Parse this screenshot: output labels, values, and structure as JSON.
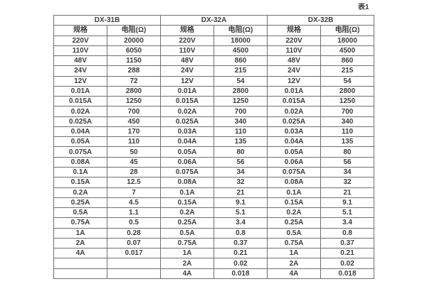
{
  "page": {
    "caption": "表1",
    "background": "#ffffff",
    "border_color": "#6f6f6f",
    "text_color": "#3c3c3c"
  },
  "table": {
    "groups": [
      {
        "name": "DX-31B",
        "col_headers": [
          "规格",
          "电阻(Ω)"
        ]
      },
      {
        "name": "DX-32A",
        "col_headers": [
          "规格",
          "电阻(Ω)"
        ]
      },
      {
        "name": "DX-32B",
        "col_headers": [
          "规格",
          "电阻(Ω)"
        ]
      }
    ],
    "rows": [
      [
        [
          "220V",
          "20000"
        ],
        [
          "220V",
          "18000"
        ],
        [
          "220V",
          "18000"
        ]
      ],
      [
        [
          "110V",
          "6050"
        ],
        [
          "110V",
          "4500"
        ],
        [
          "110V",
          "4500"
        ]
      ],
      [
        [
          "48V",
          "1150"
        ],
        [
          "48V",
          "860"
        ],
        [
          "48V",
          "860"
        ]
      ],
      [
        [
          "24V",
          "288"
        ],
        [
          "24V",
          "215"
        ],
        [
          "24V",
          "215"
        ]
      ],
      [
        [
          "12V",
          "72"
        ],
        [
          "12V",
          "54"
        ],
        [
          "12V",
          "54"
        ]
      ],
      [
        [
          "0.01A",
          "2800"
        ],
        [
          "0.01A",
          "2800"
        ],
        [
          "0.01A",
          "2800"
        ]
      ],
      [
        [
          "0.015A",
          "1250"
        ],
        [
          "0.015A",
          "1250"
        ],
        [
          "0.015A",
          "1250"
        ]
      ],
      [
        [
          "0.02A",
          "700"
        ],
        [
          "0.02A",
          "700"
        ],
        [
          "0.02A",
          "700"
        ]
      ],
      [
        [
          "0.025A",
          "450"
        ],
        [
          "0.025A",
          "340"
        ],
        [
          "0.025A",
          "340"
        ]
      ],
      [
        [
          "0.04A",
          "170"
        ],
        [
          "0.03A",
          "110"
        ],
        [
          "0.03A",
          "110"
        ]
      ],
      [
        [
          "0.05A",
          "110"
        ],
        [
          "0.04A",
          "135"
        ],
        [
          "0.04A",
          "135"
        ]
      ],
      [
        [
          "0.075A",
          "50"
        ],
        [
          "0.05A",
          "80"
        ],
        [
          "0.05A",
          "80"
        ]
      ],
      [
        [
          "0.08A",
          "45"
        ],
        [
          "0.06A",
          "56"
        ],
        [
          "0.06A",
          "56"
        ]
      ],
      [
        [
          "0.1A",
          "28"
        ],
        [
          "0.075A",
          "34"
        ],
        [
          "0.075A",
          "34"
        ]
      ],
      [
        [
          "0.15A",
          "12.5"
        ],
        [
          "0.08A",
          "32"
        ],
        [
          "0.08A",
          "32"
        ]
      ],
      [
        [
          "0.2A",
          "7"
        ],
        [
          "0.1A",
          "21"
        ],
        [
          "0.1A",
          "21"
        ]
      ],
      [
        [
          "0.25A",
          "4.5"
        ],
        [
          "0.15A",
          "9.1"
        ],
        [
          "0.15A",
          "9.1"
        ]
      ],
      [
        [
          "0.5A",
          "1.1"
        ],
        [
          "0.2A",
          "5.1"
        ],
        [
          "0.2A",
          "5.1"
        ]
      ],
      [
        [
          "0.75A",
          "0.5"
        ],
        [
          "0.25A",
          "3.4"
        ],
        [
          "0.25A",
          "3.4"
        ]
      ],
      [
        [
          "1A",
          "0.28"
        ],
        [
          "0.5A",
          "0.8"
        ],
        [
          "0.5A",
          "0.8"
        ]
      ],
      [
        [
          "2A",
          "0.07"
        ],
        [
          "0.75A",
          "0.37"
        ],
        [
          "0.75A",
          "0.37"
        ]
      ],
      [
        [
          "4A",
          "0.017"
        ],
        [
          "1A",
          "0.21"
        ],
        [
          "1A",
          "0.21"
        ]
      ],
      [
        [
          "",
          ""
        ],
        [
          "2A",
          "0.02"
        ],
        [
          "2A",
          "0.02"
        ]
      ],
      [
        [
          "",
          ""
        ],
        [
          "4A",
          "0.018"
        ],
        [
          "4A",
          "0.018"
        ]
      ]
    ]
  }
}
